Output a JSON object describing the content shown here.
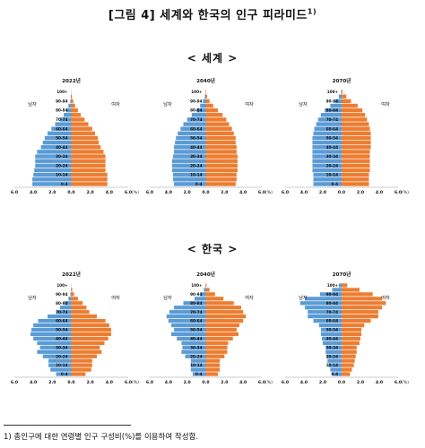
{
  "figure_title": "[그림 4] 세계와 한국의 인구 피라미드",
  "figure_title_note": "1)",
  "sections": [
    {
      "label": "< 세계 >"
    },
    {
      "label": "< 한국 >"
    }
  ],
  "footnote": "1) 총인구에 대한 연령별 인구 구성비(%)를 이용하여 작성함.",
  "colors": {
    "male": "#5B9BD5",
    "female": "#ED7D31"
  },
  "chart_data": [
    {
      "type": "bar",
      "orientation": "horizontal-population-pyramid",
      "region": "세계",
      "title": "2022년",
      "male_label": "남자",
      "female_label": "여자",
      "unit_label": "(%)",
      "age_groups": [
        "0-4",
        "5-9",
        "10-14",
        "15-19",
        "20-24",
        "25-29",
        "30-34",
        "35-39",
        "40-44",
        "45-49",
        "50-54",
        "55-59",
        "60-64",
        "65-69",
        "70-74",
        "75-79",
        "80-84",
        "85-89",
        "90-94",
        "95-99",
        "100+"
      ],
      "tick_labels": [
        "0-4",
        "10-14",
        "20-24",
        "30-34",
        "40-44",
        "50-54",
        "60-64",
        "70-74",
        "80-84",
        "90-94",
        "100+"
      ],
      "xlim": [
        -6,
        6
      ],
      "xticks": [
        "6.0",
        "4.0",
        "2.0",
        "0.0",
        "2.0",
        "4.0",
        "6.0"
      ],
      "series": [
        {
          "name": "남자",
          "values": [
            4.1,
            4.1,
            4.0,
            3.9,
            3.8,
            3.8,
            3.8,
            3.6,
            3.2,
            3.0,
            2.8,
            2.5,
            2.1,
            1.7,
            1.2,
            0.8,
            0.5,
            0.3,
            0.1,
            0.05,
            0.01
          ]
        },
        {
          "name": "여자",
          "values": [
            3.8,
            3.8,
            3.8,
            3.6,
            3.6,
            3.6,
            3.6,
            3.4,
            3.1,
            2.9,
            2.8,
            2.5,
            2.2,
            1.8,
            1.4,
            1.0,
            0.7,
            0.4,
            0.2,
            0.07,
            0.02
          ]
        }
      ]
    },
    {
      "type": "bar",
      "orientation": "horizontal-population-pyramid",
      "region": "세계",
      "title": "2040년",
      "male_label": "남자",
      "female_label": "여자",
      "unit_label": "(%)",
      "age_groups": [
        "0-4",
        "5-9",
        "10-14",
        "15-19",
        "20-24",
        "25-29",
        "30-34",
        "35-39",
        "40-44",
        "45-49",
        "50-54",
        "55-59",
        "60-64",
        "65-69",
        "70-74",
        "75-79",
        "80-84",
        "85-89",
        "90-94",
        "95-99",
        "100+"
      ],
      "tick_labels": [
        "0-4",
        "10-14",
        "20-24",
        "30-34",
        "40-44",
        "50-54",
        "60-64",
        "70-74",
        "80-84",
        "90-94",
        "100+"
      ],
      "xlim": [
        -6,
        6
      ],
      "xticks": [
        "6.0",
        "4.0",
        "2.0",
        "0.0",
        "2.0",
        "4.0",
        "6.0"
      ],
      "series": [
        {
          "name": "남자",
          "values": [
            3.4,
            3.5,
            3.5,
            3.6,
            3.6,
            3.6,
            3.5,
            3.4,
            3.4,
            3.3,
            3.2,
            3.0,
            2.7,
            2.4,
            2.0,
            1.5,
            1.0,
            0.6,
            0.3,
            0.1,
            0.02
          ]
        },
        {
          "name": "여자",
          "values": [
            3.2,
            3.3,
            3.3,
            3.4,
            3.4,
            3.4,
            3.4,
            3.3,
            3.3,
            3.2,
            3.2,
            3.0,
            2.8,
            2.5,
            2.2,
            1.8,
            1.3,
            0.8,
            0.4,
            0.15,
            0.04
          ]
        }
      ]
    },
    {
      "type": "bar",
      "orientation": "horizontal-population-pyramid",
      "region": "세계",
      "title": "2070년",
      "male_label": "남자",
      "female_label": "여자",
      "unit_label": "(%)",
      "age_groups": [
        "0-4",
        "5-9",
        "10-14",
        "15-19",
        "20-24",
        "25-29",
        "30-34",
        "35-39",
        "40-44",
        "45-49",
        "50-54",
        "55-59",
        "60-64",
        "65-69",
        "70-74",
        "75-79",
        "80-84",
        "85-89",
        "90-94",
        "95-99",
        "100+"
      ],
      "tick_labels": [
        "0-4",
        "10-14",
        "20-24",
        "30-34",
        "40-44",
        "50-54",
        "60-64",
        "70-74",
        "80-84",
        "90-94",
        "100+"
      ],
      "xlim": [
        -6,
        6
      ],
      "xticks": [
        "6.0",
        "4.0",
        "2.0",
        "0.0",
        "2.0",
        "4.0",
        "6.0"
      ],
      "series": [
        {
          "name": "남자",
          "values": [
            3.0,
            3.0,
            3.0,
            3.1,
            3.1,
            3.1,
            3.1,
            3.1,
            3.1,
            3.1,
            3.1,
            3.0,
            2.9,
            2.7,
            2.5,
            2.2,
            1.8,
            1.2,
            0.7,
            0.3,
            0.05
          ]
        },
        {
          "name": "여자",
          "values": [
            2.9,
            2.9,
            2.9,
            3.0,
            3.0,
            3.0,
            3.0,
            3.0,
            3.1,
            3.1,
            3.1,
            3.1,
            3.0,
            2.9,
            2.7,
            2.5,
            2.2,
            1.7,
            1.0,
            0.5,
            0.1
          ]
        }
      ]
    },
    {
      "type": "bar",
      "orientation": "horizontal-population-pyramid",
      "region": "한국",
      "title": "2022년",
      "male_label": "남자",
      "female_label": "여자",
      "unit_label": "(%)",
      "age_groups": [
        "0-4",
        "5-9",
        "10-14",
        "15-19",
        "20-24",
        "25-29",
        "30-34",
        "35-39",
        "40-44",
        "45-49",
        "50-54",
        "55-59",
        "60-64",
        "65-69",
        "70-74",
        "75-79",
        "80-84",
        "85-89",
        "90-94",
        "95-99",
        "100+"
      ],
      "tick_labels": [
        "0-4",
        "10-14",
        "20-24",
        "30-34",
        "40-44",
        "50-54",
        "60-64",
        "70-74",
        "80-84",
        "90-94",
        "100+"
      ],
      "xlim": [
        -6,
        6
      ],
      "xticks": [
        "6.0",
        "4.0",
        "2.0",
        "0.0",
        "2.0",
        "4.0",
        "6.0"
      ],
      "series": [
        {
          "name": "남자",
          "values": [
            1.6,
            2.2,
            2.4,
            2.4,
            3.0,
            3.6,
            3.3,
            3.6,
            4.0,
            4.3,
            4.2,
            4.0,
            3.5,
            2.5,
            1.6,
            1.2,
            0.7,
            0.3,
            0.1,
            0.03,
            0.01
          ]
        },
        {
          "name": "여자",
          "values": [
            1.5,
            2.1,
            2.2,
            2.2,
            2.7,
            3.2,
            3.0,
            3.5,
            3.9,
            4.2,
            4.2,
            4.0,
            3.6,
            2.7,
            1.9,
            1.6,
            1.2,
            0.7,
            0.3,
            0.1,
            0.02
          ]
        }
      ]
    },
    {
      "type": "bar",
      "orientation": "horizontal-population-pyramid",
      "region": "한국",
      "title": "2040년",
      "male_label": "남자",
      "female_label": "여자",
      "unit_label": "(%)",
      "age_groups": [
        "0-4",
        "5-9",
        "10-14",
        "15-19",
        "20-24",
        "25-29",
        "30-34",
        "35-39",
        "40-44",
        "45-49",
        "50-54",
        "55-59",
        "60-64",
        "65-69",
        "70-74",
        "75-79",
        "80-84",
        "85-89",
        "90-94",
        "95-99",
        "100+"
      ],
      "tick_labels": [
        "0-4",
        "10-14",
        "20-24",
        "30-34",
        "40-44",
        "50-54",
        "60-64",
        "70-74",
        "80-84",
        "90-94",
        "100+"
      ],
      "xlim": [
        -6,
        6
      ],
      "xticks": [
        "6.0",
        "4.0",
        "2.0",
        "0.0",
        "2.0",
        "4.0",
        "6.0"
      ],
      "series": [
        {
          "name": "남자",
          "values": [
            1.4,
            1.6,
            1.6,
            1.6,
            2.2,
            2.6,
            2.5,
            2.6,
            3.1,
            3.7,
            3.4,
            3.7,
            4.0,
            4.2,
            3.9,
            3.4,
            2.4,
            1.2,
            0.6,
            0.2,
            0.03
          ]
        },
        {
          "name": "여자",
          "values": [
            1.3,
            1.5,
            1.5,
            1.5,
            2.0,
            2.3,
            2.3,
            2.4,
            2.9,
            3.5,
            3.3,
            3.6,
            4.0,
            4.3,
            4.0,
            3.8,
            3.0,
            1.9,
            1.0,
            0.4,
            0.08
          ]
        }
      ]
    },
    {
      "type": "bar",
      "orientation": "horizontal-population-pyramid",
      "region": "한국",
      "title": "2070년",
      "male_label": "남자",
      "female_label": "여자",
      "unit_label": "(%)",
      "age_groups": [
        "0-4",
        "5-9",
        "10-14",
        "15-19",
        "20-24",
        "25-29",
        "30-34",
        "35-39",
        "40-44",
        "45-49",
        "50-54",
        "55-59",
        "60-64",
        "65-69",
        "70-74",
        "75-79",
        "80-84",
        "85-89",
        "90-94",
        "95-99",
        "100+"
      ],
      "tick_labels": [
        "0-4",
        "10-14",
        "20-24",
        "30-34",
        "40-44",
        "50-54",
        "60-64",
        "70-74",
        "80-84",
        "90-94",
        "100+"
      ],
      "xlim": [
        -6,
        6
      ],
      "xticks": [
        "6.0",
        "4.0",
        "2.0",
        "0.0",
        "2.0",
        "4.0",
        "6.0"
      ],
      "series": [
        {
          "name": "남자",
          "values": [
            1.0,
            1.2,
            1.4,
            1.5,
            1.6,
            1.7,
            1.7,
            2.0,
            2.1,
            2.2,
            2.2,
            2.4,
            3.0,
            3.6,
            3.6,
            3.9,
            4.4,
            3.9,
            2.3,
            1.0,
            0.3
          ]
        },
        {
          "name": "여자",
          "values": [
            0.9,
            1.1,
            1.3,
            1.4,
            1.5,
            1.6,
            1.6,
            1.9,
            2.0,
            2.1,
            2.1,
            2.4,
            3.1,
            3.9,
            3.9,
            4.3,
            4.7,
            4.3,
            3.3,
            1.9,
            0.6
          ]
        }
      ]
    }
  ]
}
